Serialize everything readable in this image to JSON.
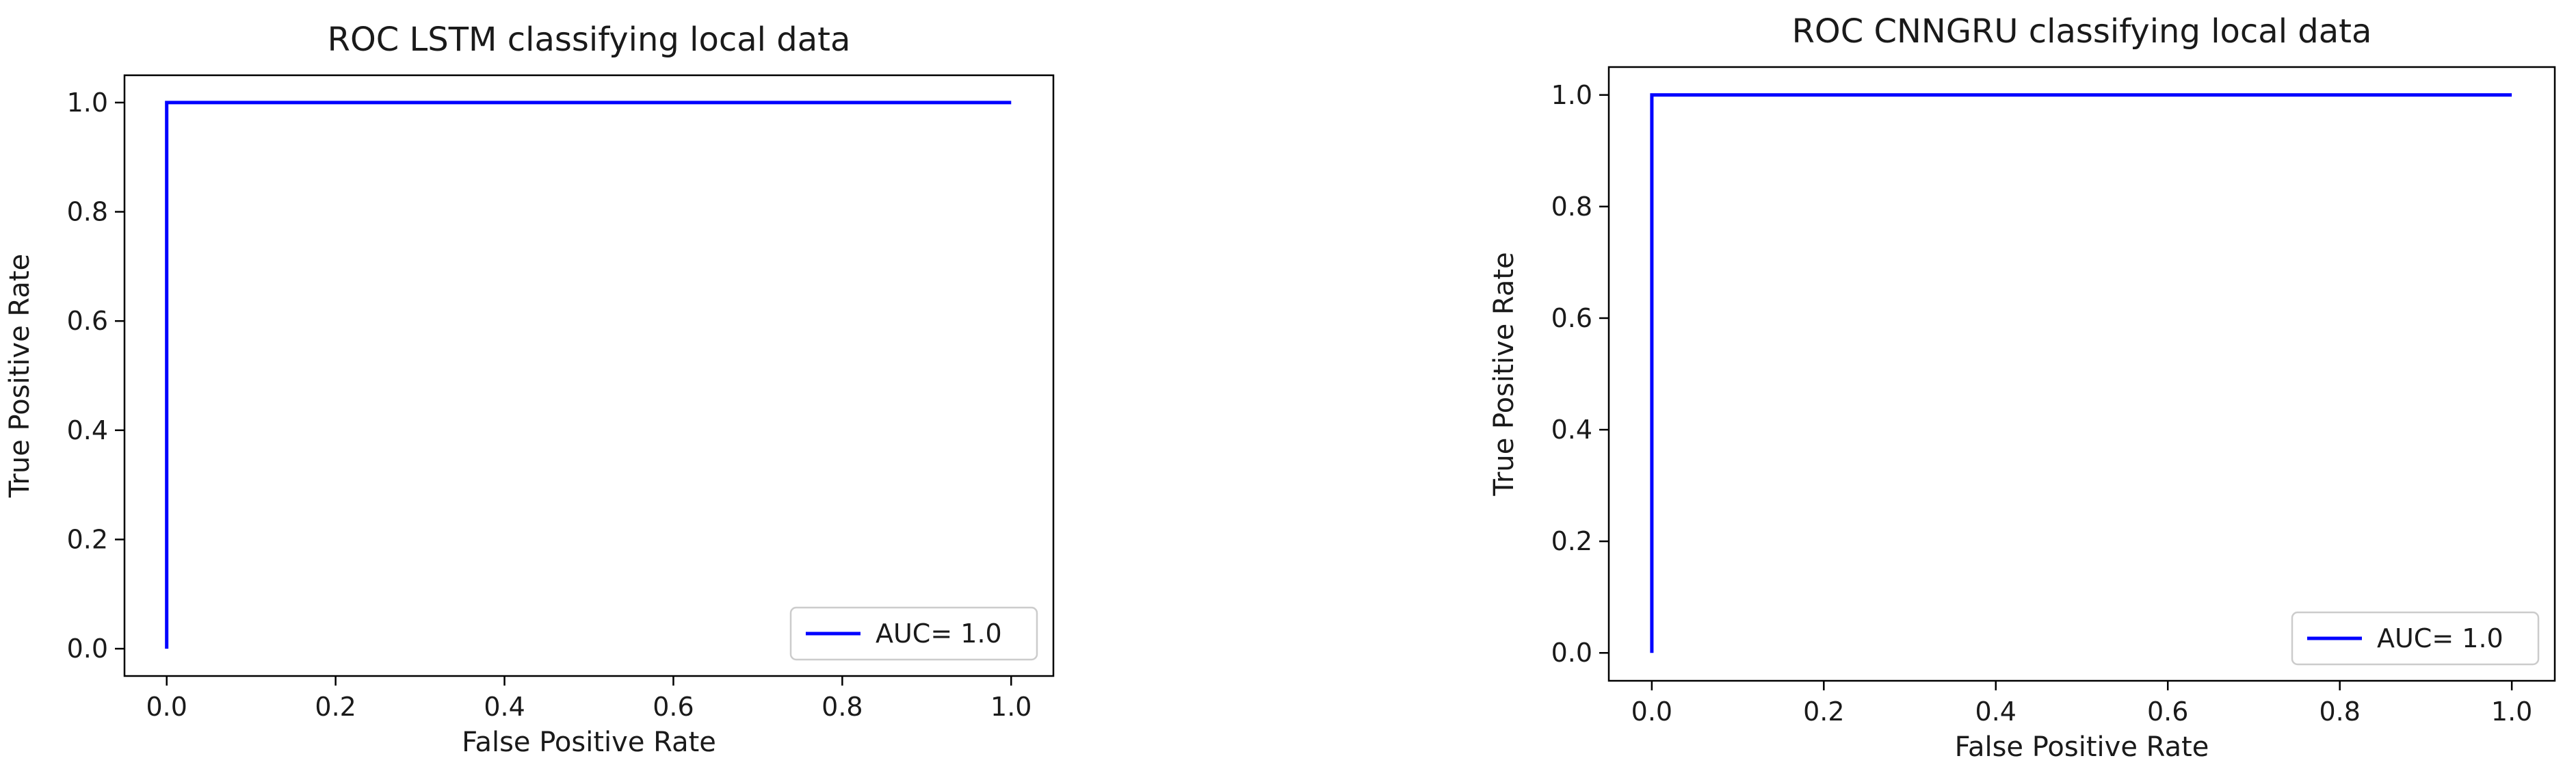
{
  "chart_data": [
    {
      "type": "line",
      "title": "ROC LSTM classifying local data",
      "xlabel": "False Positive Rate",
      "ylabel": "True Positive Rate",
      "xlim": [
        -0.05,
        1.05
      ],
      "ylim": [
        -0.05,
        1.05
      ],
      "xticks": [
        "0.0",
        "0.2",
        "0.4",
        "0.6",
        "0.8",
        "1.0"
      ],
      "yticks": [
        "0.0",
        "0.2",
        "0.4",
        "0.6",
        "0.8",
        "1.0"
      ],
      "grid": false,
      "legend_position": "lower-right",
      "series": [
        {
          "name": "AUC= 1.0",
          "color": "#0000ff",
          "x": [
            0.0,
            0.0,
            1.0
          ],
          "y": [
            0.0,
            1.0,
            1.0
          ]
        }
      ]
    },
    {
      "type": "line",
      "title": "ROC CNNGRU classifying local data",
      "xlabel": "False Positive Rate",
      "ylabel": "True Positive Rate",
      "xlim": [
        -0.05,
        1.05
      ],
      "ylim": [
        -0.05,
        1.05
      ],
      "xticks": [
        "0.0",
        "0.2",
        "0.4",
        "0.6",
        "0.8",
        "1.0"
      ],
      "yticks": [
        "0.0",
        "0.2",
        "0.4",
        "0.6",
        "0.8",
        "1.0"
      ],
      "grid": false,
      "legend_position": "lower-right",
      "series": [
        {
          "name": "AUC= 1.0",
          "color": "#0000ff",
          "x": [
            0.0,
            0.0,
            1.0
          ],
          "y": [
            0.0,
            1.0,
            1.0
          ]
        }
      ]
    }
  ]
}
